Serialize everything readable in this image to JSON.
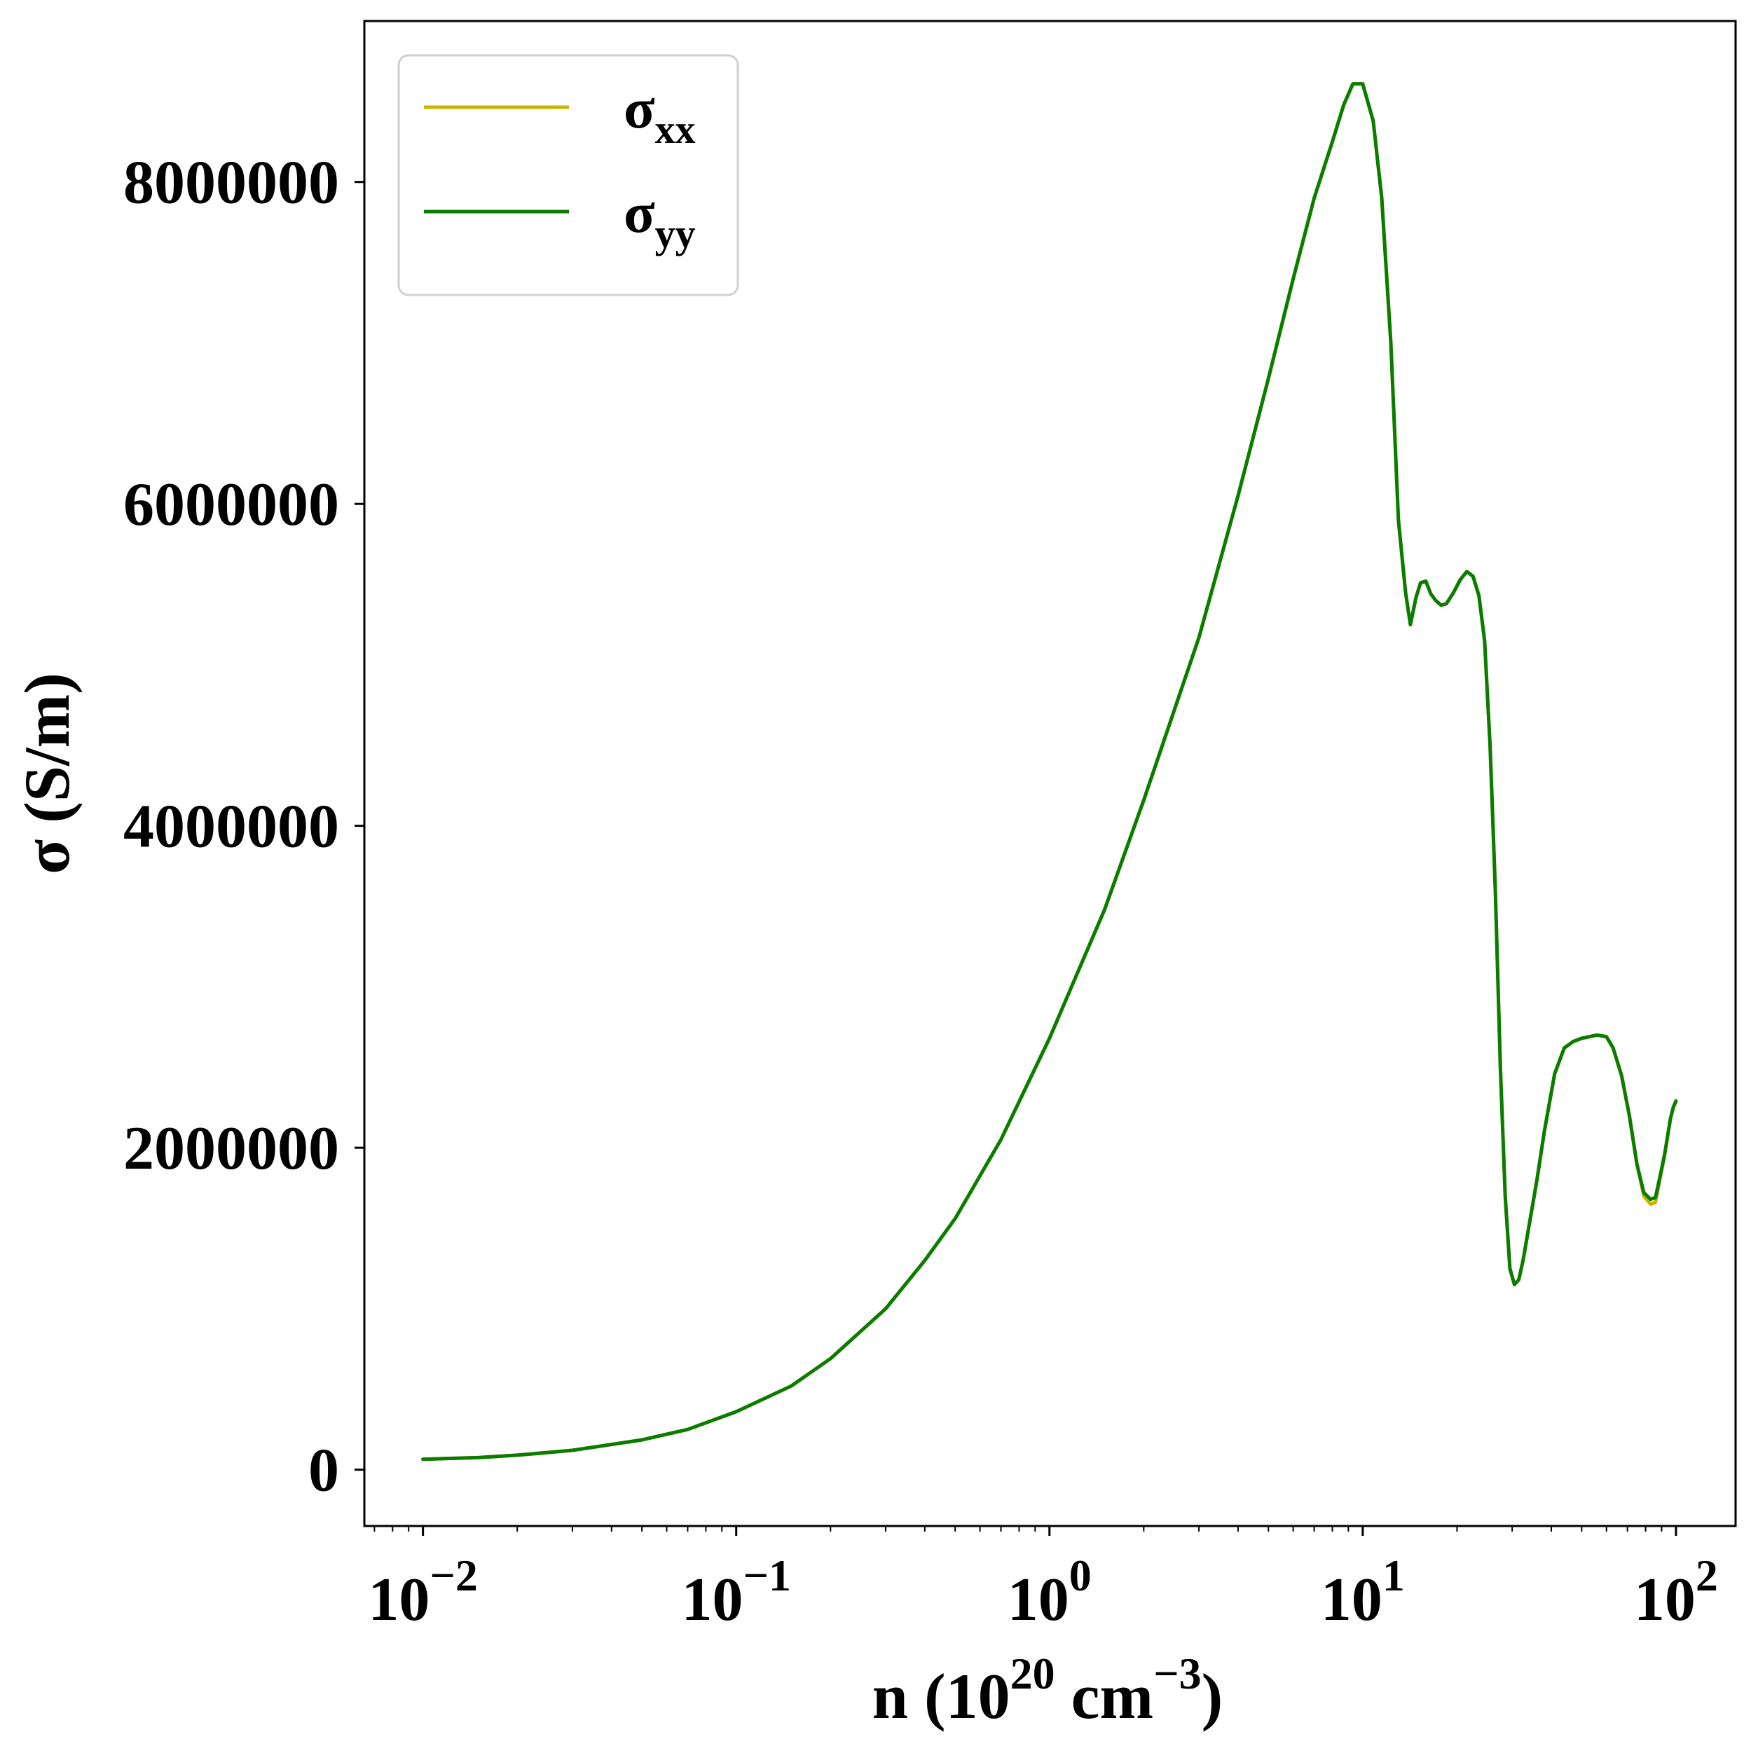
{
  "chart_data": {
    "type": "line",
    "xscale": "log",
    "xlim": [
      0.0065,
      155
    ],
    "ylim": [
      -350000,
      9000000
    ],
    "grid": false,
    "legend_position": "top-left",
    "colors": {
      "sigma_xx": "#c8b400",
      "sigma_yy": "#0a7d00",
      "axes": "#000000",
      "legend_frame": "#cccccc"
    },
    "xlabel": {
      "base": "n (10",
      "sup1": "20",
      "mid": " cm",
      "sup2": "−3",
      "end": ")"
    },
    "ylabel": "σ (S/m)",
    "xticks": [
      {
        "value": 0.01,
        "base": "10",
        "exp": "−2"
      },
      {
        "value": 0.1,
        "base": "10",
        "exp": "−1"
      },
      {
        "value": 1,
        "base": "10",
        "exp": "0"
      },
      {
        "value": 10,
        "base": "10",
        "exp": "1"
      },
      {
        "value": 100,
        "base": "10",
        "exp": "2"
      }
    ],
    "yticks": [
      {
        "value": 0,
        "label": "0"
      },
      {
        "value": 2000000,
        "label": "2000000"
      },
      {
        "value": 4000000,
        "label": "4000000"
      },
      {
        "value": 6000000,
        "label": "6000000"
      },
      {
        "value": 8000000,
        "label": "8000000"
      }
    ],
    "series": [
      {
        "name": "σ",
        "name_sub": "xx",
        "color": "#c8b400",
        "x": [
          0.01,
          0.015,
          0.02,
          0.03,
          0.05,
          0.07,
          0.1,
          0.15,
          0.2,
          0.3,
          0.4,
          0.5,
          0.7,
          1.0,
          1.5,
          2.0,
          3.0,
          4.0,
          5.0,
          6.0,
          7.0,
          8.0,
          8.7,
          9.3,
          10.0,
          10.8,
          11.5,
          12.3,
          13.0,
          13.7,
          14.2,
          14.8,
          15.3,
          15.9,
          16.5,
          17.1,
          17.8,
          18.5,
          19.5,
          20.5,
          21.5,
          22.5,
          23.5,
          24.5,
          25.5,
          26.5,
          27.5,
          28.5,
          29.5,
          30.5,
          31.5,
          32.5,
          34.0,
          36.0,
          38.0,
          41.0,
          44.0,
          47.0,
          50.0,
          53.0,
          56.0,
          60.0,
          63.0,
          67.0,
          71.0,
          75.0,
          79.0,
          83.0,
          86.0,
          88.0,
          90.0,
          92.0,
          94.0,
          96.0,
          98.0,
          100.0
        ],
        "y": [
          65000,
          75000,
          90000,
          120000,
          185000,
          250000,
          360000,
          520000,
          690000,
          1000000,
          1300000,
          1560000,
          2050000,
          2680000,
          3480000,
          4160000,
          5170000,
          6050000,
          6780000,
          7400000,
          7900000,
          8250000,
          8480000,
          8610000,
          8610000,
          8380000,
          7900000,
          7000000,
          5900000,
          5450000,
          5250000,
          5420000,
          5510000,
          5520000,
          5440000,
          5400000,
          5370000,
          5380000,
          5450000,
          5530000,
          5580000,
          5550000,
          5430000,
          5150000,
          4500000,
          3600000,
          2500000,
          1700000,
          1250000,
          1150000,
          1180000,
          1300000,
          1520000,
          1800000,
          2100000,
          2460000,
          2620000,
          2660000,
          2680000,
          2690000,
          2700000,
          2690000,
          2620000,
          2450000,
          2200000,
          1900000,
          1700000,
          1650000,
          1660000,
          1760000,
          1860000,
          1950000,
          2070000,
          2180000,
          2250000,
          2290000
        ]
      },
      {
        "name": "σ",
        "name_sub": "yy",
        "color": "#0a7d00",
        "x": [
          0.01,
          0.015,
          0.02,
          0.03,
          0.05,
          0.07,
          0.1,
          0.15,
          0.2,
          0.3,
          0.4,
          0.5,
          0.7,
          1.0,
          1.5,
          2.0,
          3.0,
          4.0,
          5.0,
          6.0,
          7.0,
          8.0,
          8.7,
          9.3,
          10.0,
          10.8,
          11.5,
          12.3,
          13.0,
          13.7,
          14.2,
          14.8,
          15.3,
          15.9,
          16.5,
          17.1,
          17.8,
          18.5,
          19.5,
          20.5,
          21.5,
          22.5,
          23.5,
          24.5,
          25.5,
          26.5,
          27.5,
          28.5,
          29.5,
          30.5,
          31.5,
          32.5,
          34.0,
          36.0,
          38.0,
          41.0,
          44.0,
          47.0,
          50.0,
          53.0,
          56.0,
          60.0,
          63.0,
          67.0,
          71.0,
          75.0,
          79.0,
          83.0,
          86.0,
          88.0,
          90.0,
          92.0,
          94.0,
          96.0,
          98.0,
          100.0
        ],
        "y": [
          65000,
          75000,
          90000,
          120000,
          185000,
          250000,
          360000,
          520000,
          690000,
          1000000,
          1300000,
          1560000,
          2050000,
          2680000,
          3480000,
          4160000,
          5170000,
          6050000,
          6780000,
          7400000,
          7900000,
          8250000,
          8480000,
          8610000,
          8610000,
          8380000,
          7900000,
          7000000,
          5900000,
          5450000,
          5250000,
          5420000,
          5510000,
          5520000,
          5440000,
          5400000,
          5370000,
          5380000,
          5450000,
          5530000,
          5580000,
          5550000,
          5430000,
          5150000,
          4500000,
          3600000,
          2500000,
          1700000,
          1250000,
          1150000,
          1180000,
          1300000,
          1520000,
          1800000,
          2100000,
          2460000,
          2620000,
          2660000,
          2680000,
          2690000,
          2700000,
          2690000,
          2620000,
          2450000,
          2200000,
          1900000,
          1720000,
          1680000,
          1690000,
          1780000,
          1870000,
          1960000,
          2070000,
          2180000,
          2250000,
          2290000
        ]
      }
    ]
  }
}
